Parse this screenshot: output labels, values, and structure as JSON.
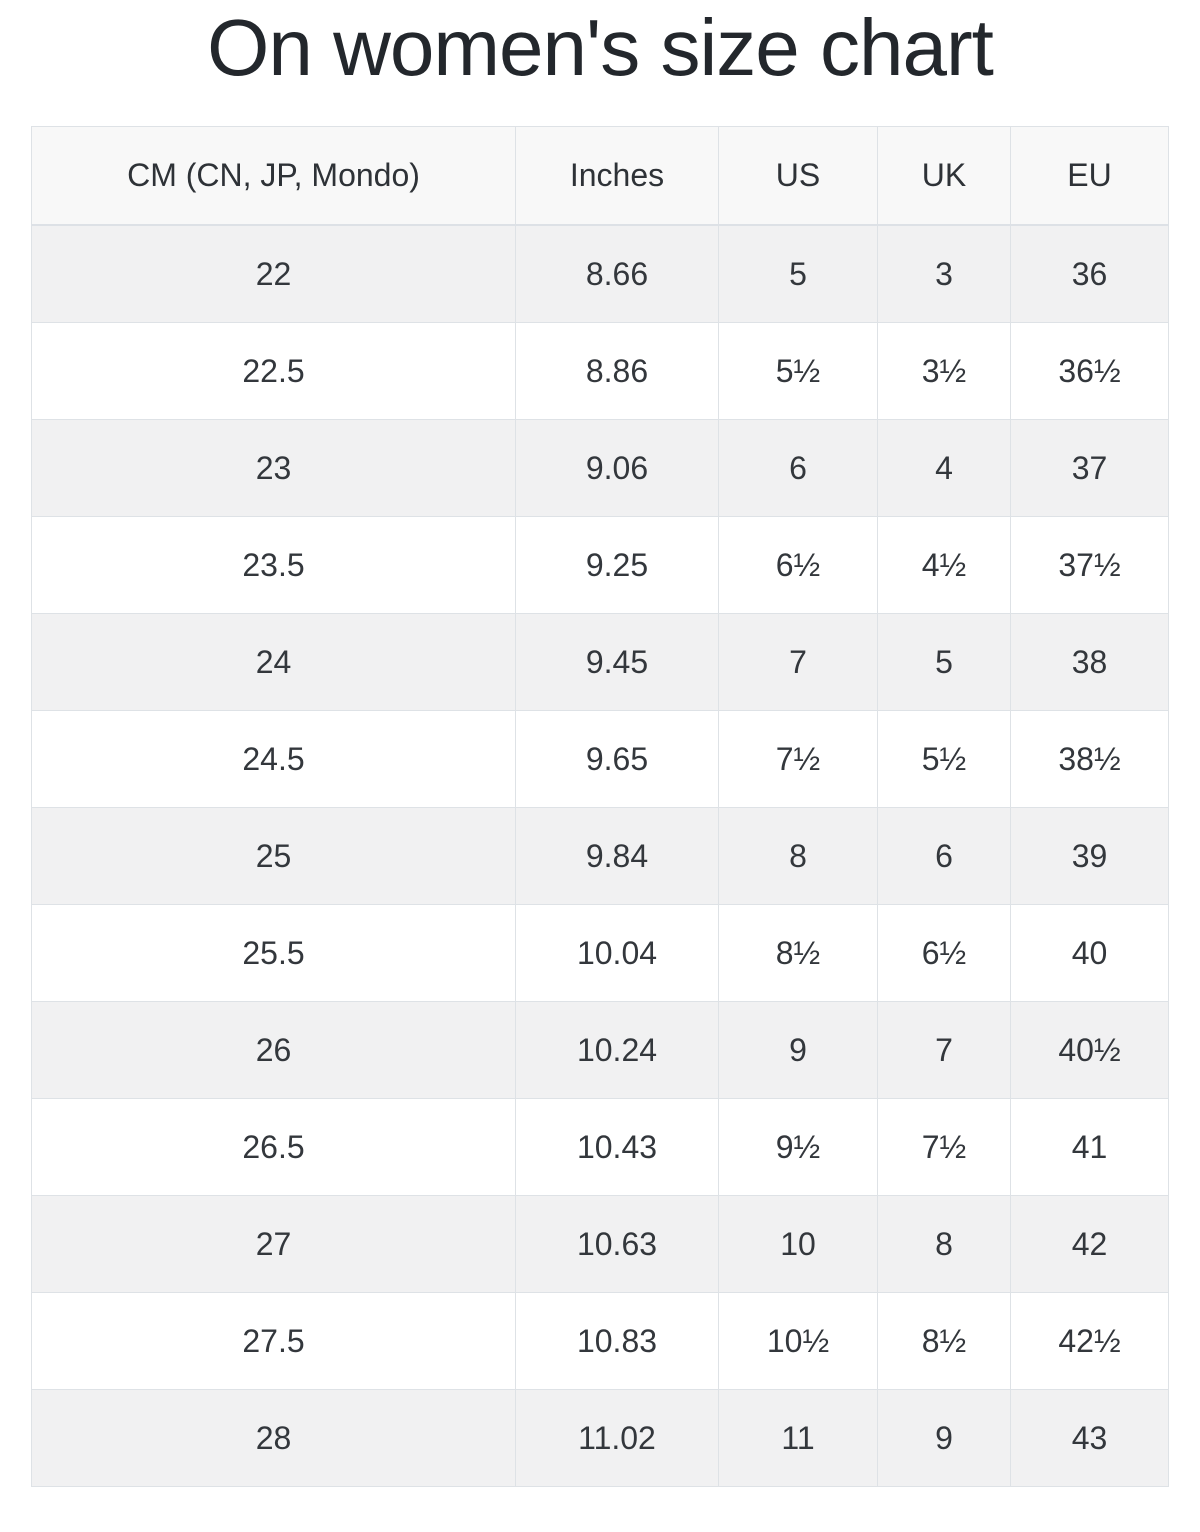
{
  "page": {
    "title": "On women's size chart"
  },
  "table": {
    "columns": [
      "CM (CN, JP, Mondo)",
      "Inches",
      "US",
      "UK",
      "EU"
    ],
    "rows": [
      [
        "22",
        "8.66",
        "5",
        "3",
        "36"
      ],
      [
        "22.5",
        "8.86",
        "5½",
        "3½",
        "36½"
      ],
      [
        "23",
        "9.06",
        "6",
        "4",
        "37"
      ],
      [
        "23.5",
        "9.25",
        "6½",
        "4½",
        "37½"
      ],
      [
        "24",
        "9.45",
        "7",
        "5",
        "38"
      ],
      [
        "24.5",
        "9.65",
        "7½",
        "5½",
        "38½"
      ],
      [
        "25",
        "9.84",
        "8",
        "6",
        "39"
      ],
      [
        "25.5",
        "10.04",
        "8½",
        "6½",
        "40"
      ],
      [
        "26",
        "10.24",
        "9",
        "7",
        "40½"
      ],
      [
        "26.5",
        "10.43",
        "9½",
        "7½",
        "41"
      ],
      [
        "27",
        "10.63",
        "10",
        "8",
        "42"
      ],
      [
        "27.5",
        "10.83",
        "10½",
        "8½",
        "42½"
      ],
      [
        "28",
        "11.02",
        "11",
        "9",
        "43"
      ]
    ]
  },
  "colors": {
    "title_text": "#23272c",
    "cell_text": "#33373c",
    "header_bg": "#f8f8f8",
    "row_alt_bg": "#f1f1f2",
    "row_bg": "#ffffff",
    "border": "#dee2e6"
  }
}
